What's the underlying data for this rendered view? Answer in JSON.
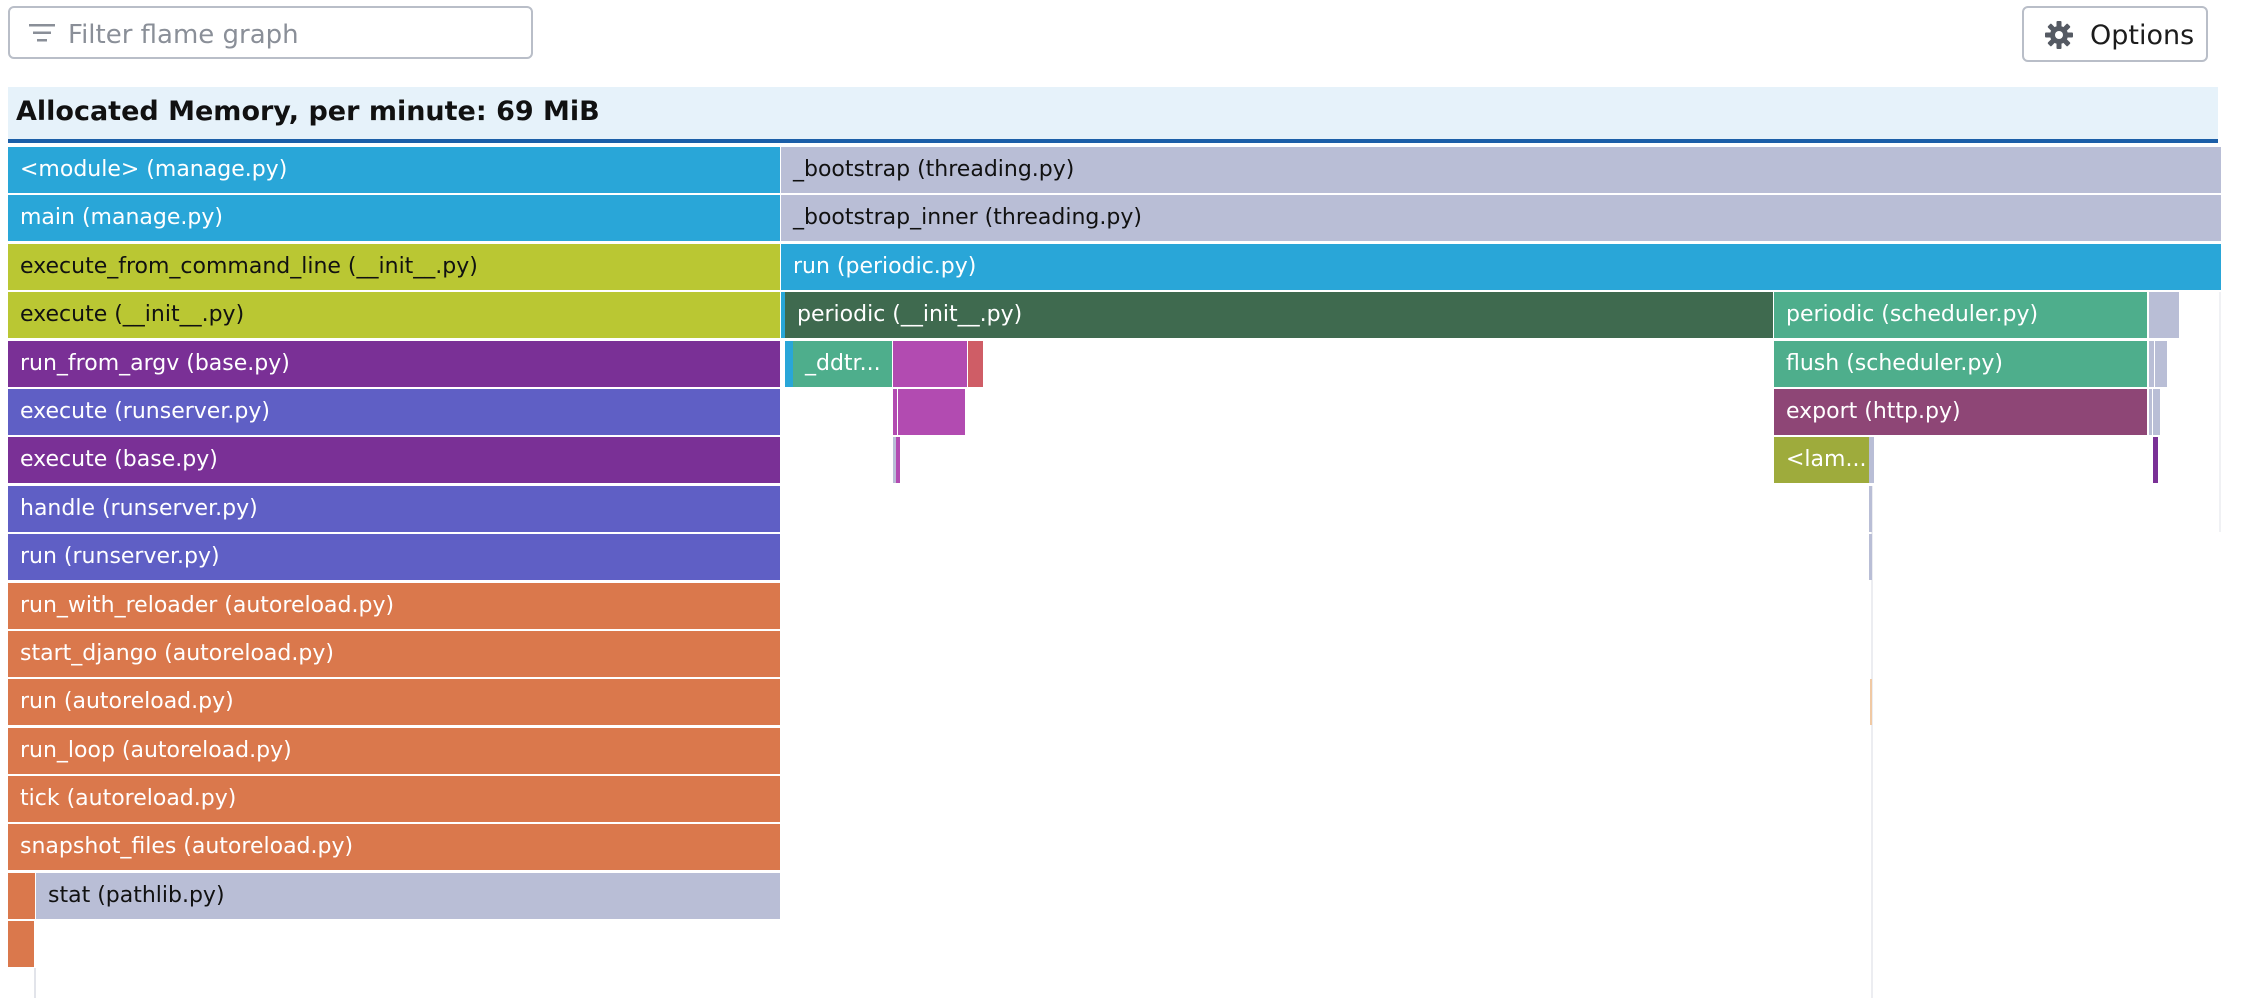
{
  "filter": {
    "placeholder": "Filter flame graph",
    "icon": "filter-icon"
  },
  "options_button": {
    "label": "Options",
    "icon": "gear-icon"
  },
  "header": {
    "title": "Allocated Memory, per minute: 69 MiB"
  },
  "frames": {
    "module_manage": "<module> (manage.py)",
    "main_manage": "main (manage.py)",
    "execute_from_command_line": "execute_from_command_line (__init__.py)",
    "execute_init": "execute (__init__.py)",
    "run_from_argv": "run_from_argv (base.py)",
    "execute_runserver": "execute (runserver.py)",
    "execute_base": "execute (base.py)",
    "handle_runserver": "handle (runserver.py)",
    "run_runserver": "run (runserver.py)",
    "run_with_reloader": "run_with_reloader (autoreload.py)",
    "start_django": "start_django (autoreload.py)",
    "run_autoreload": "run (autoreload.py)",
    "run_loop": "run_loop (autoreload.py)",
    "tick": "tick (autoreload.py)",
    "snapshot_files": "snapshot_files (autoreload.py)",
    "stat_pathlib": "stat (pathlib.py)",
    "bootstrap": "_bootstrap (threading.py)",
    "bootstrap_inner": "_bootstrap_inner (threading.py)",
    "run_periodic": "run (periodic.py)",
    "periodic_init": "periodic (__init__.py)",
    "ddtr": "_ddtr...",
    "periodic_scheduler": "periodic (scheduler.py)",
    "flush_scheduler": "flush (scheduler.py)",
    "export_http": "export (http.py)",
    "lambda": "<lam..."
  },
  "colors": {
    "blue": "#29a6d8",
    "lime": "#bac733",
    "purple": "#7a3096",
    "indigo": "#5f5fc5",
    "orange": "#da784c",
    "lavender": "#b9bed6",
    "dark_green": "#3f6a4f",
    "teal": "#4eae8c",
    "magenta": "#b24bb1",
    "plum": "#8e4676",
    "olive": "#9eab3c",
    "red": "#cf5d66"
  }
}
